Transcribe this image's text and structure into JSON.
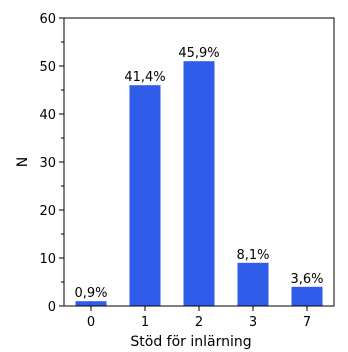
{
  "chart_data": {
    "type": "bar",
    "categories": [
      "0",
      "1",
      "2",
      "3",
      "7"
    ],
    "values": [
      1,
      46,
      51,
      9,
      4
    ],
    "data_labels": [
      "0,9%",
      "41,4%",
      "45,9%",
      "8,1%",
      "3,6%"
    ],
    "xlabel": "Stöd för inlärning",
    "ylabel": "N",
    "ylim": [
      0,
      60
    ],
    "yticks": [
      "0",
      "10",
      "20",
      "30",
      "40",
      "50",
      "60"
    ],
    "bar_color": "#2f5ce8",
    "grid": false,
    "legend": "none"
  }
}
